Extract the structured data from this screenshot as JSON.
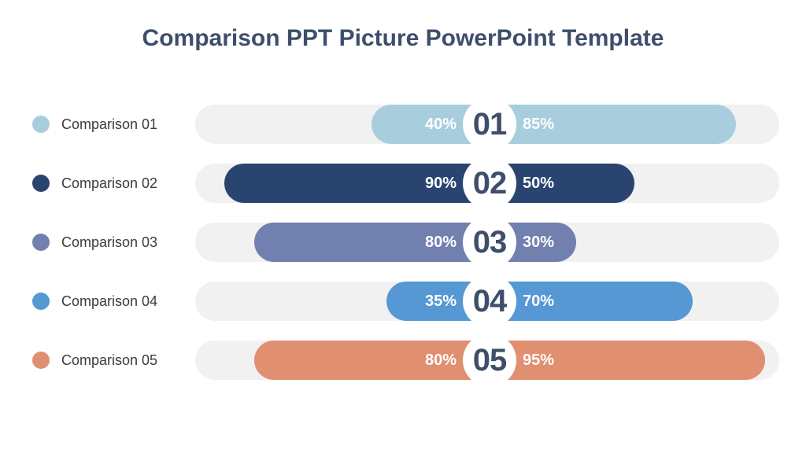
{
  "title": "Comparison PPT Picture PowerPoint Template",
  "colors": {
    "title": "#3e4e6b",
    "track": "#f1f1f1",
    "number_text": "#3e4e6b",
    "row_label_text": "#3b3b3b",
    "percent_text": "#ffffff",
    "background": "#ffffff"
  },
  "chart_data": {
    "type": "bar",
    "variant": "bidirectional-pill-comparison",
    "title": "Comparison PPT Picture PowerPoint Template",
    "value_range_percent": [
      0,
      100
    ],
    "legend_position": "left",
    "grid": false,
    "rows": [
      {
        "label": "Comparison 01",
        "number": "01",
        "left_percent": 40,
        "right_percent": 85,
        "color": "#a8cedd"
      },
      {
        "label": "Comparison 02",
        "number": "02",
        "left_percent": 90,
        "right_percent": 50,
        "color": "#2a4470"
      },
      {
        "label": "Comparison 03",
        "number": "03",
        "left_percent": 80,
        "right_percent": 30,
        "color": "#7280af"
      },
      {
        "label": "Comparison 04",
        "number": "04",
        "left_percent": 35,
        "right_percent": 70,
        "color": "#5598d3"
      },
      {
        "label": "Comparison 05",
        "number": "05",
        "left_percent": 80,
        "right_percent": 95,
        "color": "#e08f70"
      }
    ]
  }
}
